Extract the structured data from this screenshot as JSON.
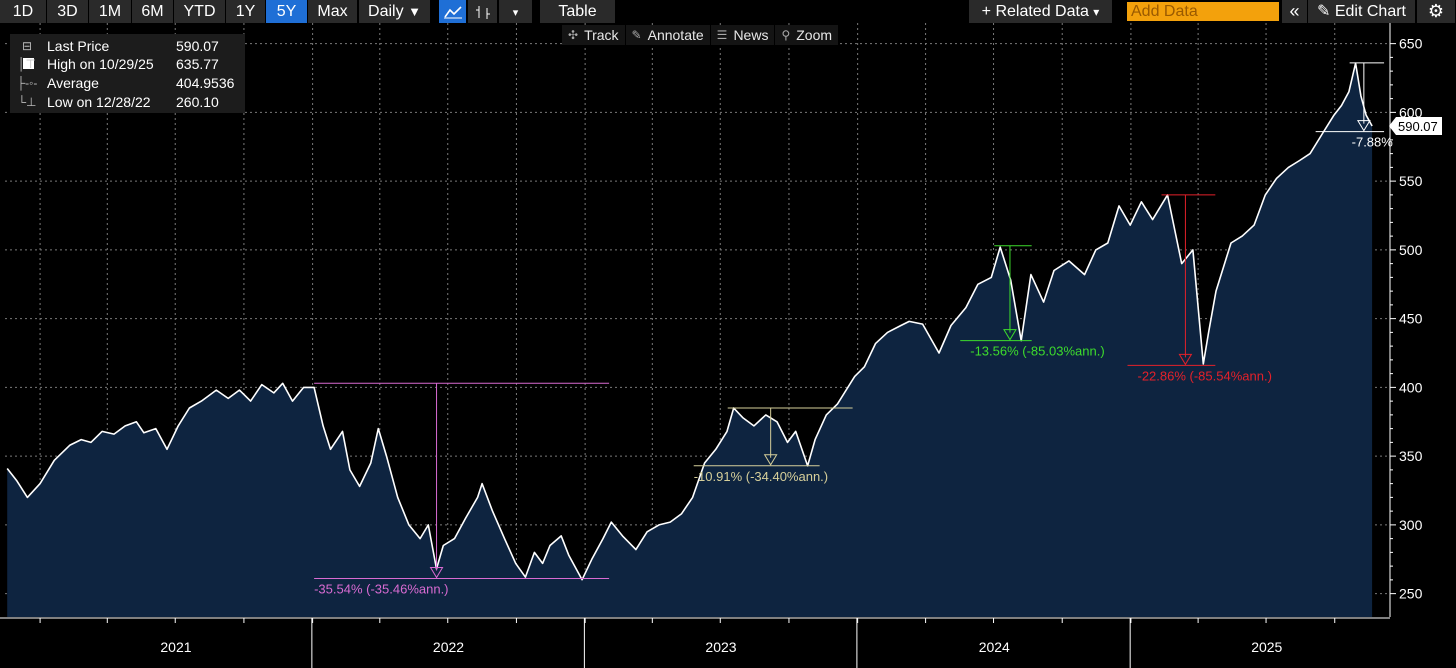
{
  "toolbar": {
    "periods": [
      "1D",
      "3D",
      "1M",
      "6M",
      "YTD",
      "1Y",
      "5Y",
      "Max"
    ],
    "active_period": "5Y",
    "frequency": "Daily",
    "frequency_caret": "▼",
    "table_label": "Table",
    "related_data": "+ Related Data",
    "related_caret": "▾",
    "add_data_placeholder": "Add Data",
    "collapse_glyph": "«",
    "edit_chart": "✎ Edit Chart",
    "settings_glyph": "⚙"
  },
  "subbar": {
    "track": "Track",
    "annotate": "Annotate",
    "news": "News",
    "zoom": "Zoom"
  },
  "legend": {
    "rows": [
      {
        "label": "Last Price",
        "value": "590.07",
        "icon": "square-icon"
      },
      {
        "label": "High on 10/29/25",
        "value": "635.77",
        "icon": "high-marker-icon"
      },
      {
        "label": "Average",
        "value": "404.9536",
        "icon": "average-marker-icon"
      },
      {
        "label": "Low on 12/28/22",
        "value": "260.10",
        "icon": "low-marker-icon"
      }
    ]
  },
  "colors": {
    "background": "#000000",
    "area_fill": "#0e2440",
    "line": "#ffffff",
    "grid": "#7a7a7a",
    "annotation_pink": "#d96bd2",
    "annotation_tan": "#d6cf9a",
    "annotation_green": "#3ddc2c",
    "annotation_red": "#e4212a",
    "active_button": "#1f6fd6",
    "add_data": "#f3a10c"
  },
  "chart_data": {
    "type": "area",
    "series": [
      {
        "name": "Last Price",
        "points": [
          [
            "2020-11-18",
            341
          ],
          [
            "2020-12-01",
            332
          ],
          [
            "2020-12-15",
            320
          ],
          [
            "2021-01-01",
            330
          ],
          [
            "2021-01-20",
            347
          ],
          [
            "2021-02-10",
            358
          ],
          [
            "2021-02-25",
            362
          ],
          [
            "2021-03-10",
            360
          ],
          [
            "2021-03-25",
            368
          ],
          [
            "2021-04-10",
            366
          ],
          [
            "2021-04-25",
            372
          ],
          [
            "2021-05-10",
            375
          ],
          [
            "2021-05-20",
            367
          ],
          [
            "2021-06-05",
            370
          ],
          [
            "2021-06-20",
            355
          ],
          [
            "2021-07-05",
            372
          ],
          [
            "2021-07-20",
            385
          ],
          [
            "2021-08-05",
            390
          ],
          [
            "2021-08-25",
            398
          ],
          [
            "2021-09-10",
            392
          ],
          [
            "2021-09-25",
            398
          ],
          [
            "2021-10-10",
            390
          ],
          [
            "2021-10-25",
            402
          ],
          [
            "2021-11-10",
            396
          ],
          [
            "2021-11-22",
            403
          ],
          [
            "2021-12-05",
            390
          ],
          [
            "2021-12-20",
            400
          ],
          [
            "2022-01-03",
            400
          ],
          [
            "2022-01-15",
            372
          ],
          [
            "2022-01-25",
            355
          ],
          [
            "2022-02-10",
            368
          ],
          [
            "2022-02-20",
            340
          ],
          [
            "2022-03-05",
            328
          ],
          [
            "2022-03-20",
            345
          ],
          [
            "2022-03-30",
            370
          ],
          [
            "2022-04-10",
            350
          ],
          [
            "2022-04-25",
            320
          ],
          [
            "2022-05-10",
            300
          ],
          [
            "2022-05-25",
            290
          ],
          [
            "2022-06-05",
            300
          ],
          [
            "2022-06-16",
            268
          ],
          [
            "2022-06-25",
            285
          ],
          [
            "2022-07-10",
            290
          ],
          [
            "2022-07-25",
            305
          ],
          [
            "2022-08-10",
            320
          ],
          [
            "2022-08-16",
            330
          ],
          [
            "2022-08-30",
            310
          ],
          [
            "2022-09-15",
            290
          ],
          [
            "2022-09-30",
            272
          ],
          [
            "2022-10-13",
            262
          ],
          [
            "2022-10-25",
            280
          ],
          [
            "2022-11-05",
            272
          ],
          [
            "2022-11-15",
            285
          ],
          [
            "2022-11-30",
            292
          ],
          [
            "2022-12-10",
            278
          ],
          [
            "2022-12-28",
            260.1
          ],
          [
            "2023-01-10",
            275
          ],
          [
            "2023-01-25",
            290
          ],
          [
            "2023-02-05",
            302
          ],
          [
            "2023-02-20",
            292
          ],
          [
            "2023-03-10",
            282
          ],
          [
            "2023-03-25",
            295
          ],
          [
            "2023-04-10",
            300
          ],
          [
            "2023-04-25",
            302
          ],
          [
            "2023-05-10",
            308
          ],
          [
            "2023-05-25",
            320
          ],
          [
            "2023-06-10",
            345
          ],
          [
            "2023-06-25",
            355
          ],
          [
            "2023-07-10",
            368
          ],
          [
            "2023-07-19",
            385
          ],
          [
            "2023-07-31",
            378
          ],
          [
            "2023-08-15",
            372
          ],
          [
            "2023-08-31",
            380
          ],
          [
            "2023-09-15",
            375
          ],
          [
            "2023-09-29",
            360
          ],
          [
            "2023-10-10",
            368
          ],
          [
            "2023-10-26",
            343
          ],
          [
            "2023-11-05",
            362
          ],
          [
            "2023-11-20",
            380
          ],
          [
            "2023-12-05",
            388
          ],
          [
            "2023-12-28",
            408
          ],
          [
            "2024-01-10",
            415
          ],
          [
            "2024-01-25",
            432
          ],
          [
            "2024-02-10",
            440
          ],
          [
            "2024-02-28",
            445
          ],
          [
            "2024-03-10",
            448
          ],
          [
            "2024-03-28",
            446
          ],
          [
            "2024-04-19",
            425
          ],
          [
            "2024-05-05",
            445
          ],
          [
            "2024-05-25",
            458
          ],
          [
            "2024-06-10",
            475
          ],
          [
            "2024-06-28",
            480
          ],
          [
            "2024-07-10",
            502
          ],
          [
            "2024-07-24",
            478
          ],
          [
            "2024-08-07",
            434
          ],
          [
            "2024-08-20",
            482
          ],
          [
            "2024-09-06",
            462
          ],
          [
            "2024-09-20",
            485
          ],
          [
            "2024-10-10",
            492
          ],
          [
            "2024-10-31",
            482
          ],
          [
            "2024-11-15",
            500
          ],
          [
            "2024-12-01",
            505
          ],
          [
            "2024-12-16",
            532
          ],
          [
            "2024-12-31",
            518
          ],
          [
            "2025-01-15",
            535
          ],
          [
            "2025-01-30",
            522
          ],
          [
            "2025-02-19",
            540
          ],
          [
            "2025-03-10",
            490
          ],
          [
            "2025-03-25",
            500
          ],
          [
            "2025-04-08",
            417
          ],
          [
            "2025-04-15",
            440
          ],
          [
            "2025-04-25",
            470
          ],
          [
            "2025-05-15",
            505
          ],
          [
            "2025-05-30",
            510
          ],
          [
            "2025-06-15",
            518
          ],
          [
            "2025-06-30",
            540
          ],
          [
            "2025-07-15",
            552
          ],
          [
            "2025-07-31",
            560
          ],
          [
            "2025-08-15",
            565
          ],
          [
            "2025-08-29",
            570
          ],
          [
            "2025-09-15",
            585
          ],
          [
            "2025-09-30",
            598
          ],
          [
            "2025-10-10",
            605
          ],
          [
            "2025-10-20",
            615
          ],
          [
            "2025-10-29",
            635.77
          ],
          [
            "2025-11-05",
            612
          ],
          [
            "2025-11-12",
            598
          ],
          [
            "2025-11-20",
            590.07
          ]
        ]
      }
    ],
    "last_price": 590.07,
    "last_price_label": "590.07",
    "high": {
      "date": "2025-10-29",
      "value": 635.77
    },
    "low": {
      "date": "2022-12-28",
      "value": 260.1
    },
    "average": 404.9536,
    "ylim": [
      233,
      665
    ],
    "yticks": [
      250,
      300,
      350,
      400,
      450,
      500,
      550,
      600,
      650
    ],
    "xlim": [
      "2020-11-15",
      "2025-12-10"
    ],
    "x_year_labels": [
      {
        "label": "2021",
        "date": "2021-07-02"
      },
      {
        "label": "2022",
        "date": "2022-07-02"
      },
      {
        "label": "2023",
        "date": "2023-07-02"
      },
      {
        "label": "2024",
        "date": "2024-07-02"
      },
      {
        "label": "2025",
        "date": "2025-07-02"
      }
    ],
    "year_separators": [
      "2021-12-31",
      "2022-12-31",
      "2023-12-31",
      "2024-12-31"
    ],
    "drawdowns": [
      {
        "start": "2022-01-03",
        "end": "2022-06-16",
        "high": 403,
        "low": 261,
        "label": "-35.54% (-35.46%ann.)",
        "color": "#d96bd2"
      },
      {
        "start": "2023-07-19",
        "end": "2023-10-26",
        "high": 385,
        "low": 343,
        "label": "-10.91% (-34.40%ann.)",
        "color": "#d6cf9a"
      },
      {
        "start": "2024-07-10",
        "end": "2024-08-05",
        "high": 503,
        "low": 434,
        "label": "-13.56% (-85.03%ann.)",
        "color": "#3ddc2c"
      },
      {
        "start": "2025-02-19",
        "end": "2025-04-08",
        "high": 540,
        "low": 416,
        "label": "-22.86% (-85.54%ann.)",
        "color": "#e4212a"
      },
      {
        "start": "2025-10-29",
        "end": "2025-11-20",
        "high": 636,
        "low": 586,
        "label": "-7.88%",
        "color": "#ffffff"
      }
    ],
    "grid": true
  }
}
